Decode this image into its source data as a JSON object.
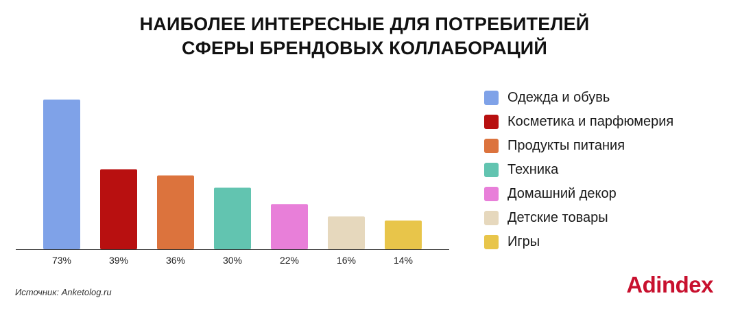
{
  "title_line1": "НАИБОЛЕЕ ИНТЕРЕСНЫЕ ДЛЯ ПОТРЕБИТЕЛЕЙ",
  "title_line2": "СФЕРЫ БРЕНДОВЫХ КОЛЛАБОРАЦИЙ",
  "source": "Источник: Anketolog.ru",
  "brand": {
    "text": "Adindex",
    "color": "#c8102e"
  },
  "chart_data": {
    "type": "bar",
    "title": "НАИБОЛЕЕ ИНТЕРЕСНЫЕ ДЛЯ ПОТРЕБИТЕЛЕЙ СФЕРЫ БРЕНДОВЫХ КОЛЛАБОРАЦИЙ",
    "unit": "%",
    "categories": [
      "Одежда и обувь",
      "Косметика и парфюмерия",
      "Продукты питания",
      "Техника",
      "Домашний декор",
      "Детские товары",
      "Игры"
    ],
    "values": [
      73,
      39,
      36,
      30,
      22,
      16,
      14
    ],
    "labels": [
      "73%",
      "39%",
      "36%",
      "30%",
      "22%",
      "16%",
      "14%"
    ],
    "colors": [
      "#7fa2e8",
      "#b81010",
      "#dc733d",
      "#62c4b0",
      "#e87fd9",
      "#e6d8bd",
      "#e8c54a"
    ],
    "ylim": [
      0,
      73
    ],
    "legend_position": "right",
    "grid": false
  }
}
